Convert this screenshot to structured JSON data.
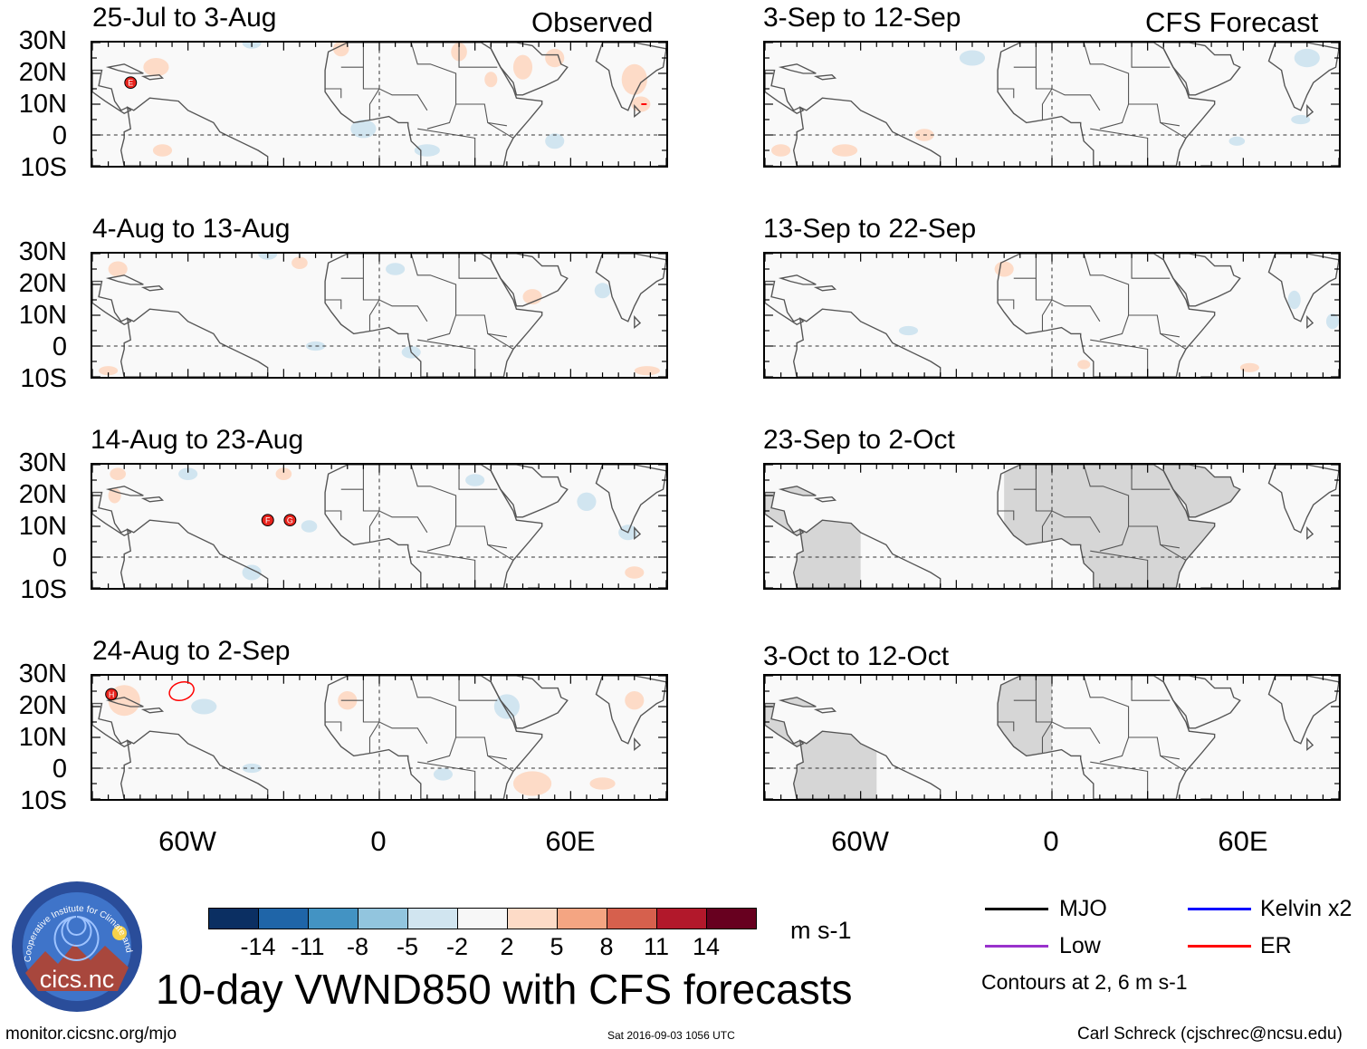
{
  "header": {
    "observed_label": "Observed",
    "forecast_label": "CFS Forecast"
  },
  "panels_left": [
    {
      "title": "25-Jul to 3-Aug"
    },
    {
      "title": "4-Aug to 13-Aug"
    },
    {
      "title": "14-Aug to 23-Aug"
    },
    {
      "title": "24-Aug to 2-Sep"
    }
  ],
  "panels_right": [
    {
      "title": "3-Sep to 12-Sep"
    },
    {
      "title": "13-Sep to 22-Sep"
    },
    {
      "title": "23-Sep to 2-Oct"
    },
    {
      "title": "3-Oct to 12-Oct"
    }
  ],
  "lat_labels": [
    "30N",
    "20N",
    "10N",
    "0",
    "10S"
  ],
  "lon_labels": [
    "60W",
    "0",
    "60E"
  ],
  "storms": [
    {
      "panel": "left-0",
      "letter": "E"
    },
    {
      "panel": "left-2",
      "letter": "F"
    },
    {
      "panel": "left-2",
      "letter": "G"
    },
    {
      "panel": "left-3",
      "letter": "H"
    }
  ],
  "colorbar": {
    "ticks": [
      "-14",
      "-11",
      "-8",
      "-5",
      "-2",
      "2",
      "5",
      "8",
      "11",
      "14"
    ],
    "colors": [
      "#0b2f62",
      "#1f65a8",
      "#4393c3",
      "#92c5de",
      "#d1e5f0",
      "#f7f7f7",
      "#fddbc7",
      "#f4a582",
      "#d6604d",
      "#b2182b",
      "#67001f"
    ],
    "units": "m s-1"
  },
  "legend": {
    "items": [
      {
        "label": "MJO",
        "color": "#000000"
      },
      {
        "label": "Kelvin x2",
        "color": "#0000ff"
      },
      {
        "label": "Low",
        "color": "#9932cc"
      },
      {
        "label": "ER",
        "color": "#ff0000"
      }
    ],
    "contours_note": "Contours at 2, 6 m s-1"
  },
  "logo": {
    "text": "cics.nc",
    "ring_text": "Cooperative Institute for Climate and Satellites"
  },
  "footer": {
    "main_title": "10-day VWND850 with CFS forecasts",
    "url": "monitor.cicsnc.org/mjo",
    "timestamp": "Sat 2016-09-03 1056 UTC",
    "author": "Carl Schreck (cjschrec@ncsu.edu)"
  }
}
